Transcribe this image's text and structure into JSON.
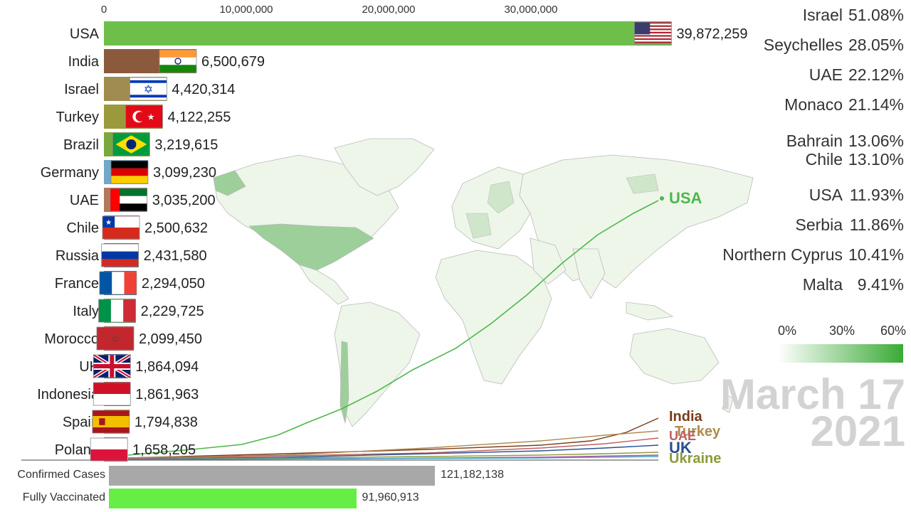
{
  "chart_data": {
    "type": "bar",
    "axis": {
      "ticks": [
        "0",
        "10,000,000",
        "20,000,000",
        "30,000,000"
      ],
      "tick_values": [
        0,
        10000000,
        20000000,
        30000000
      ],
      "max": 40000000
    },
    "bars": [
      {
        "country": "USA",
        "value": 39872259,
        "value_label": "39,872,259",
        "color": "#6ebf4a",
        "flag": "usa"
      },
      {
        "country": "India",
        "value": 6500679,
        "value_label": "6,500,679",
        "color": "#8b5a3c",
        "flag": "india"
      },
      {
        "country": "Israel",
        "value": 4420314,
        "value_label": "4,420,314",
        "color": "#a08b50",
        "flag": "israel"
      },
      {
        "country": "Turkey",
        "value": 4122255,
        "value_label": "4,122,255",
        "color": "#9a9a3c",
        "flag": "turkey"
      },
      {
        "country": "Brazil",
        "value": 3219615,
        "value_label": "3,219,615",
        "color": "#7aa83c",
        "flag": "brazil"
      },
      {
        "country": "Germany",
        "value": 3099230,
        "value_label": "3,099,230",
        "color": "#6fa8c8",
        "flag": "germany"
      },
      {
        "country": "UAE",
        "value": 3035200,
        "value_label": "3,035,200",
        "color": "#b07a5a",
        "flag": "uae"
      },
      {
        "country": "Chile",
        "value": 2500632,
        "value_label": "2,500,632",
        "color": "#d05050",
        "flag": "chile"
      },
      {
        "country": "Russia",
        "value": 2431580,
        "value_label": "2,431,580",
        "color": "#3a5fa8",
        "flag": "russia"
      },
      {
        "country": "France",
        "value": 2294050,
        "value_label": "2,294,050",
        "color": "#2a4fa0",
        "flag": "france"
      },
      {
        "country": "Italy",
        "value": 2229725,
        "value_label": "2,229,725",
        "color": "#5aa060",
        "flag": "italy"
      },
      {
        "country": "Morocco",
        "value": 2099450,
        "value_label": "2,099,450",
        "color": "#b03030",
        "flag": "morocco"
      },
      {
        "country": "UK",
        "value": 1864094,
        "value_label": "1,864,094",
        "color": "#2a3f80",
        "flag": "uk"
      },
      {
        "country": "Indonesia",
        "value": 1861963,
        "value_label": "1,861,963",
        "color": "#c04040",
        "flag": "indonesia"
      },
      {
        "country": "Spain",
        "value": 1794838,
        "value_label": "1,794,838",
        "color": "#d4a020",
        "flag": "spain"
      },
      {
        "country": "Poland",
        "value": 1658205,
        "value_label": "1,658,205",
        "color": "#d84060",
        "flag": "poland"
      }
    ],
    "percentages": [
      {
        "country": "Israel",
        "value": "51.08%"
      },
      {
        "country": "Seychelles",
        "value": "28.05%"
      },
      {
        "country": "UAE",
        "value": "22.12%"
      },
      {
        "country": "Monaco",
        "value": "21.14%"
      },
      {
        "country": "Bahrain",
        "value": "13.06%"
      },
      {
        "country": "Chile",
        "value": "13.10%"
      },
      {
        "country": "USA",
        "value": "11.93%"
      },
      {
        "country": "Serbia",
        "value": "11.86%"
      },
      {
        "country": "Northern Cyprus",
        "value": "10.41%"
      },
      {
        "country": "Malta",
        "value": "9.41%"
      }
    ],
    "color_scale": [
      "0%",
      "30%",
      "60%"
    ],
    "date": {
      "line1": "March 17",
      "line2": "2021"
    },
    "summary": [
      {
        "label": "Confirmed Cases",
        "value": 121182138,
        "value_label": "121,182,138",
        "color": "#a8a8a8"
      },
      {
        "label": "Fully Vaccinated",
        "value": 91960913,
        "value_label": "91,960,913",
        "color": "#66ee44"
      }
    ],
    "line_labels": [
      {
        "text": "USA",
        "color": "#4cb84a"
      },
      {
        "text": "India",
        "color": "#7a3a1a"
      },
      {
        "text": "Turkey",
        "color": "#b08a50"
      },
      {
        "text": "UAE",
        "color": "#c06060"
      },
      {
        "text": "UK",
        "color": "#2a4f90"
      },
      {
        "text": "Ukraine",
        "color": "#8a9a3a"
      }
    ]
  }
}
